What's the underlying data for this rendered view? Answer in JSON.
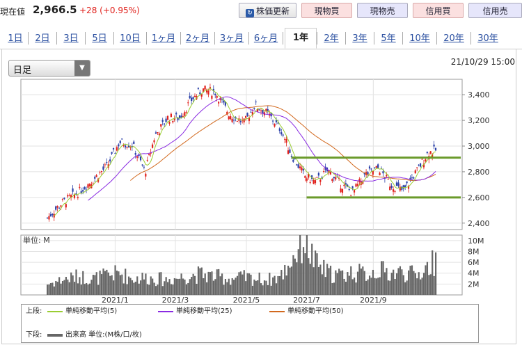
{
  "header": {
    "price_label": "現在値",
    "price_value": "2,966.5",
    "price_change": "+28 (+0.95%)",
    "buttons": {
      "update": "株価更新",
      "spot_buy": "現物買",
      "spot_sell": "現物売",
      "margin_buy": "信用買",
      "margin_sell": "信用売"
    },
    "colors": {
      "up": "#e0201b",
      "buy_bg": "#fbe0e0",
      "sell_bg": "#e6e6fb"
    }
  },
  "tabs": [
    {
      "label": "1日",
      "active": false
    },
    {
      "label": "2日",
      "active": false
    },
    {
      "label": "3日",
      "active": false
    },
    {
      "label": "5日",
      "active": false
    },
    {
      "label": "10日",
      "active": false
    },
    {
      "label": "1ヶ月",
      "active": false
    },
    {
      "label": "2ヶ月",
      "active": false
    },
    {
      "label": "3ヶ月",
      "active": false
    },
    {
      "label": "6ヶ月",
      "active": false
    },
    {
      "label": "1年",
      "active": true
    },
    {
      "label": "2年",
      "active": false
    },
    {
      "label": "3年",
      "active": false
    },
    {
      "label": "5年",
      "active": false
    },
    {
      "label": "10年",
      "active": false
    },
    {
      "label": "20年",
      "active": false
    },
    {
      "label": "30年",
      "active": false
    }
  ],
  "controls": {
    "period_select": "日足",
    "timestamp": "21/10/29 15:00"
  },
  "chart_data": [
    {
      "type": "candlestick",
      "title": "",
      "x_tick_labels": [
        "2021/1",
        "2021/3",
        "2021/5",
        "2021/7",
        "2021/9"
      ],
      "y_tick_labels": [
        "3,400",
        "3,200",
        "3,000",
        "2,800",
        "2,600",
        "2,400"
      ],
      "ylim": [
        2350,
        3520
      ],
      "grid": true,
      "close_series": [
        {
          "date": "2020-11-02",
          "close": 2440
        },
        {
          "date": "2020-11-16",
          "close": 2560
        },
        {
          "date": "2020-12-01",
          "close": 2640
        },
        {
          "date": "2020-12-15",
          "close": 2740
        },
        {
          "date": "2020-12-28",
          "close": 2850
        },
        {
          "date": "2021-01-08",
          "close": 3030
        },
        {
          "date": "2021-01-20",
          "close": 3010
        },
        {
          "date": "2021-02-01",
          "close": 2800
        },
        {
          "date": "2021-02-10",
          "close": 3080
        },
        {
          "date": "2021-02-22",
          "close": 3220
        },
        {
          "date": "2021-03-05",
          "close": 3220
        },
        {
          "date": "2021-03-16",
          "close": 3360
        },
        {
          "date": "2021-03-26",
          "close": 3440
        },
        {
          "date": "2021-04-07",
          "close": 3420
        },
        {
          "date": "2021-04-20",
          "close": 3250
        },
        {
          "date": "2021-05-04",
          "close": 3180
        },
        {
          "date": "2021-05-14",
          "close": 3320
        },
        {
          "date": "2021-05-26",
          "close": 3250
        },
        {
          "date": "2021-06-07",
          "close": 3130
        },
        {
          "date": "2021-06-17",
          "close": 2930
        },
        {
          "date": "2021-06-29",
          "close": 2770
        },
        {
          "date": "2021-07-09",
          "close": 2720
        },
        {
          "date": "2021-07-21",
          "close": 2810
        },
        {
          "date": "2021-08-02",
          "close": 2700
        },
        {
          "date": "2021-08-13",
          "close": 2640
        },
        {
          "date": "2021-08-25",
          "close": 2780
        },
        {
          "date": "2021-09-06",
          "close": 2830
        },
        {
          "date": "2021-09-17",
          "close": 2700
        },
        {
          "date": "2021-09-29",
          "close": 2650
        },
        {
          "date": "2021-10-11",
          "close": 2800
        },
        {
          "date": "2021-10-22",
          "close": 2950
        },
        {
          "date": "2021-10-29",
          "close": 2966.5
        }
      ],
      "horizontal_lines": [
        2910,
        2600
      ],
      "horizontal_line_color": "#6a9a2a",
      "series_colors": {
        "up": "#e0201b",
        "down": "#2b40a8",
        "ma5": "#9acd32",
        "ma25": "#8a2be2",
        "ma50": "#d2691e"
      }
    },
    {
      "type": "bar",
      "title": "",
      "unit_label": "単位: M",
      "y_tick_labels": [
        "10M",
        "8M",
        "6M",
        "4M",
        "2M"
      ],
      "ylim": [
        0,
        11
      ],
      "bar_color": "#666666",
      "volume_series": [
        {
          "date": "2020-11-02",
          "volume": 2.0
        },
        {
          "date": "2020-11-16",
          "volume": 2.8
        },
        {
          "date": "2020-12-01",
          "volume": 3.4
        },
        {
          "date": "2020-12-15",
          "volume": 3.0
        },
        {
          "date": "2020-12-28",
          "volume": 3.6
        },
        {
          "date": "2021-01-08",
          "volume": 4.0
        },
        {
          "date": "2021-01-20",
          "volume": 3.0
        },
        {
          "date": "2021-02-01",
          "volume": 3.2
        },
        {
          "date": "2021-02-10",
          "volume": 3.0
        },
        {
          "date": "2021-02-22",
          "volume": 2.8
        },
        {
          "date": "2021-03-05",
          "volume": 3.2
        },
        {
          "date": "2021-03-16",
          "volume": 3.6
        },
        {
          "date": "2021-03-26",
          "volume": 3.8
        },
        {
          "date": "2021-04-07",
          "volume": 3.4
        },
        {
          "date": "2021-04-20",
          "volume": 3.0
        },
        {
          "date": "2021-05-04",
          "volume": 3.2
        },
        {
          "date": "2021-05-14",
          "volume": 3.0
        },
        {
          "date": "2021-05-26",
          "volume": 2.8
        },
        {
          "date": "2021-06-07",
          "volume": 3.4
        },
        {
          "date": "2021-06-17",
          "volume": 6.5
        },
        {
          "date": "2021-06-29",
          "volume": 10.5
        },
        {
          "date": "2021-07-09",
          "volume": 5.8
        },
        {
          "date": "2021-07-21",
          "volume": 4.0
        },
        {
          "date": "2021-08-02",
          "volume": 3.6
        },
        {
          "date": "2021-08-13",
          "volume": 4.2
        },
        {
          "date": "2021-08-25",
          "volume": 3.8
        },
        {
          "date": "2021-09-06",
          "volume": 4.6
        },
        {
          "date": "2021-09-17",
          "volume": 4.0
        },
        {
          "date": "2021-09-29",
          "volume": 4.2
        },
        {
          "date": "2021-10-11",
          "volume": 3.6
        },
        {
          "date": "2021-10-22",
          "volume": 5.2
        },
        {
          "date": "2021-10-29",
          "volume": 6.3
        }
      ]
    }
  ],
  "legend": {
    "upper_label": "上段:",
    "lower_label": "下段:",
    "ma5": "単純移動平均(5)",
    "ma25": "単純移動平均(25)",
    "ma50": "単純移動平均(50)",
    "volume": "出来高 単位:(M株/口/枚)"
  }
}
